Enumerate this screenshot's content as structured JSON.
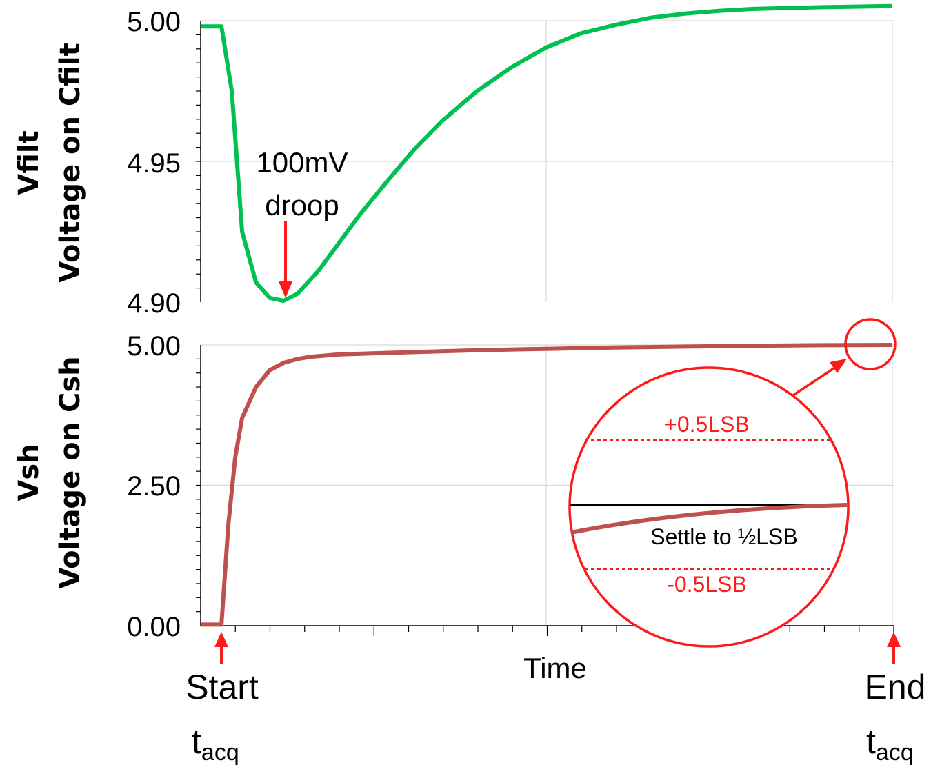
{
  "chart_data": [
    {
      "type": "line",
      "title": "",
      "ylabel_line1": "Vfilt",
      "ylabel_line2": "Voltage on Cfilt",
      "ylim": [
        4.9,
        5.0
      ],
      "yticks": [
        "5.00",
        "4.95",
        "4.90"
      ],
      "series": [
        {
          "color": "#00c050",
          "x": [
            0,
            0.03,
            0.045,
            0.06,
            0.08,
            0.1,
            0.12,
            0.14,
            0.17,
            0.2,
            0.23,
            0.27,
            0.31,
            0.35,
            0.4,
            0.45,
            0.5,
            0.55,
            0.6,
            0.65,
            0.7,
            0.75,
            0.8,
            0.9,
            1.0
          ],
          "y": [
            4.998,
            4.998,
            4.975,
            4.925,
            4.907,
            4.9015,
            4.9005,
            4.903,
            4.911,
            4.921,
            4.931,
            4.943,
            4.9545,
            4.9645,
            4.975,
            4.9835,
            4.9905,
            4.9955,
            4.9985,
            5.001,
            5.0025,
            5.0035,
            5.0042,
            5.0048,
            5.0052
          ]
        }
      ],
      "annotations": {
        "droop_line1": "100mV",
        "droop_line2": "droop"
      }
    },
    {
      "type": "line",
      "title": "",
      "ylabel_line1": "Vsh",
      "ylabel_line2": "Voltage on Csh",
      "ylim": [
        0.0,
        5.0
      ],
      "yticks": [
        "5.00",
        "2.50",
        "0.00"
      ],
      "xlabel": "Time",
      "series": [
        {
          "color": "#c0504d",
          "x": [
            0,
            0.03,
            0.04,
            0.05,
            0.06,
            0.08,
            0.1,
            0.12,
            0.14,
            0.16,
            0.2,
            0.3,
            0.4,
            0.5,
            0.6,
            0.7,
            0.8,
            0.9,
            1.0
          ],
          "y": [
            0.02,
            0.02,
            1.8,
            3.0,
            3.7,
            4.25,
            4.55,
            4.68,
            4.75,
            4.79,
            4.83,
            4.87,
            4.905,
            4.93,
            4.955,
            4.97,
            4.985,
            4.995,
            5.0
          ]
        }
      ],
      "inset": {
        "upper_label": "+0.5LSB",
        "lower_label": "-0.5LSB",
        "settle_label": "Settle to ½LSB",
        "line_color": "#ff1a1a"
      }
    }
  ],
  "x_markers": {
    "start_label": "Start",
    "end_label": "End",
    "tacq_base": "t",
    "tacq_sub": "acq"
  }
}
